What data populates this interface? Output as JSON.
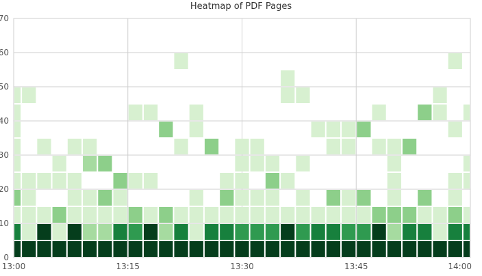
{
  "chart_data": {
    "type": "heatmap",
    "title": "Heatmap of PDF Pages",
    "xlabel": "",
    "ylabel": "",
    "x_start": "13:00",
    "x_end": "14:00",
    "x_ticks": [
      "13:00",
      "13:15",
      "13:30",
      "13:45",
      "14:00"
    ],
    "ylim": [
      0,
      70
    ],
    "y_ticks": [
      0,
      10,
      20,
      30,
      40,
      50,
      60,
      70
    ],
    "bin_minutes": 2,
    "bin_height": 5,
    "grid": true,
    "colors": [
      "#d7f0d0",
      "#a6dba0",
      "#8dcf8a",
      "#5ab867",
      "#2f9a50",
      "#17803d",
      "#0c5a2a",
      "#053d1c"
    ],
    "columns": [
      {
        "time": "13:00",
        "cells": [
          {
            "y": 0,
            "level": 7
          },
          {
            "y": 5,
            "level": 5
          },
          {
            "y": 10,
            "level": 0
          },
          {
            "y": 15,
            "level": 2
          },
          {
            "y": 20,
            "level": 0
          },
          {
            "y": 25,
            "level": 0
          },
          {
            "y": 30,
            "level": 0
          },
          {
            "y": 35,
            "level": 0
          },
          {
            "y": 40,
            "level": 0
          },
          {
            "y": 45,
            "level": 0
          }
        ]
      },
      {
        "time": "13:02",
        "cells": [
          {
            "y": 0,
            "level": 7
          },
          {
            "y": 5,
            "level": 0
          },
          {
            "y": 10,
            "level": 0
          },
          {
            "y": 15,
            "level": 0
          },
          {
            "y": 20,
            "level": 0
          },
          {
            "y": 45,
            "level": 0
          }
        ]
      },
      {
        "time": "13:04",
        "cells": [
          {
            "y": 0,
            "level": 7
          },
          {
            "y": 5,
            "level": 7
          },
          {
            "y": 10,
            "level": 0
          },
          {
            "y": 20,
            "level": 0
          },
          {
            "y": 30,
            "level": 0
          }
        ]
      },
      {
        "time": "13:06",
        "cells": [
          {
            "y": 0,
            "level": 7
          },
          {
            "y": 5,
            "level": 0
          },
          {
            "y": 10,
            "level": 2
          },
          {
            "y": 20,
            "level": 0
          },
          {
            "y": 25,
            "level": 0
          }
        ]
      },
      {
        "time": "13:08",
        "cells": [
          {
            "y": 0,
            "level": 7
          },
          {
            "y": 5,
            "level": 7
          },
          {
            "y": 10,
            "level": 0
          },
          {
            "y": 15,
            "level": 0
          },
          {
            "y": 20,
            "level": 0
          },
          {
            "y": 30,
            "level": 0
          }
        ]
      },
      {
        "time": "13:10",
        "cells": [
          {
            "y": 0,
            "level": 7
          },
          {
            "y": 5,
            "level": 1
          },
          {
            "y": 10,
            "level": 0
          },
          {
            "y": 15,
            "level": 0
          },
          {
            "y": 25,
            "level": 1
          },
          {
            "y": 30,
            "level": 0
          }
        ]
      },
      {
        "time": "13:12",
        "cells": [
          {
            "y": 0,
            "level": 7
          },
          {
            "y": 5,
            "level": 1
          },
          {
            "y": 10,
            "level": 0
          },
          {
            "y": 15,
            "level": 2
          },
          {
            "y": 25,
            "level": 2
          }
        ]
      },
      {
        "time": "13:14",
        "cells": [
          {
            "y": 0,
            "level": 7
          },
          {
            "y": 5,
            "level": 5
          },
          {
            "y": 10,
            "level": 0
          },
          {
            "y": 15,
            "level": 0
          },
          {
            "y": 20,
            "level": 2
          }
        ]
      },
      {
        "time": "13:16",
        "cells": [
          {
            "y": 0,
            "level": 7
          },
          {
            "y": 5,
            "level": 4
          },
          {
            "y": 10,
            "level": 2
          },
          {
            "y": 20,
            "level": 0
          },
          {
            "y": 40,
            "level": 0
          }
        ]
      },
      {
        "time": "13:18",
        "cells": [
          {
            "y": 0,
            "level": 7
          },
          {
            "y": 5,
            "level": 7
          },
          {
            "y": 10,
            "level": 0
          },
          {
            "y": 20,
            "level": 0
          },
          {
            "y": 40,
            "level": 0
          }
        ]
      },
      {
        "time": "13:20",
        "cells": [
          {
            "y": 0,
            "level": 7
          },
          {
            "y": 5,
            "level": 1
          },
          {
            "y": 10,
            "level": 2
          },
          {
            "y": 35,
            "level": 2
          }
        ]
      },
      {
        "time": "13:22",
        "cells": [
          {
            "y": 0,
            "level": 7
          },
          {
            "y": 5,
            "level": 5
          },
          {
            "y": 10,
            "level": 0
          },
          {
            "y": 30,
            "level": 0
          },
          {
            "y": 55,
            "level": 0
          }
        ]
      },
      {
        "time": "13:24",
        "cells": [
          {
            "y": 0,
            "level": 7
          },
          {
            "y": 5,
            "level": 0
          },
          {
            "y": 10,
            "level": 0
          },
          {
            "y": 15,
            "level": 0
          },
          {
            "y": 35,
            "level": 0
          },
          {
            "y": 40,
            "level": 0
          }
        ]
      },
      {
        "time": "13:26",
        "cells": [
          {
            "y": 0,
            "level": 7
          },
          {
            "y": 5,
            "level": 5
          },
          {
            "y": 10,
            "level": 0
          },
          {
            "y": 30,
            "level": 2
          }
        ]
      },
      {
        "time": "13:28",
        "cells": [
          {
            "y": 0,
            "level": 7
          },
          {
            "y": 5,
            "level": 5
          },
          {
            "y": 10,
            "level": 0
          },
          {
            "y": 15,
            "level": 2
          },
          {
            "y": 20,
            "level": 0
          }
        ]
      },
      {
        "time": "13:30",
        "cells": [
          {
            "y": 0,
            "level": 7
          },
          {
            "y": 5,
            "level": 4
          },
          {
            "y": 10,
            "level": 0
          },
          {
            "y": 15,
            "level": 0
          },
          {
            "y": 20,
            "level": 0
          },
          {
            "y": 25,
            "level": 0
          },
          {
            "y": 30,
            "level": 0
          }
        ]
      },
      {
        "time": "13:32",
        "cells": [
          {
            "y": 0,
            "level": 7
          },
          {
            "y": 5,
            "level": 4
          },
          {
            "y": 10,
            "level": 0
          },
          {
            "y": 15,
            "level": 0
          },
          {
            "y": 25,
            "level": 0
          },
          {
            "y": 30,
            "level": 0
          }
        ]
      },
      {
        "time": "13:34",
        "cells": [
          {
            "y": 0,
            "level": 7
          },
          {
            "y": 5,
            "level": 4
          },
          {
            "y": 10,
            "level": 0
          },
          {
            "y": 15,
            "level": 0
          },
          {
            "y": 20,
            "level": 2
          },
          {
            "y": 25,
            "level": 0
          }
        ]
      },
      {
        "time": "13:36",
        "cells": [
          {
            "y": 0,
            "level": 7
          },
          {
            "y": 5,
            "level": 7
          },
          {
            "y": 10,
            "level": 0
          },
          {
            "y": 20,
            "level": 0
          },
          {
            "y": 45,
            "level": 0
          },
          {
            "y": 50,
            "level": 0
          }
        ]
      },
      {
        "time": "13:38",
        "cells": [
          {
            "y": 0,
            "level": 7
          },
          {
            "y": 5,
            "level": 4
          },
          {
            "y": 10,
            "level": 0
          },
          {
            "y": 15,
            "level": 0
          },
          {
            "y": 25,
            "level": 0
          },
          {
            "y": 45,
            "level": 0
          }
        ]
      },
      {
        "time": "13:40",
        "cells": [
          {
            "y": 0,
            "level": 7
          },
          {
            "y": 5,
            "level": 5
          },
          {
            "y": 10,
            "level": 0
          },
          {
            "y": 35,
            "level": 0
          }
        ]
      },
      {
        "time": "13:42",
        "cells": [
          {
            "y": 0,
            "level": 7
          },
          {
            "y": 5,
            "level": 5
          },
          {
            "y": 10,
            "level": 0
          },
          {
            "y": 15,
            "level": 2
          },
          {
            "y": 30,
            "level": 0
          },
          {
            "y": 35,
            "level": 0
          }
        ]
      },
      {
        "time": "13:44",
        "cells": [
          {
            "y": 0,
            "level": 7
          },
          {
            "y": 5,
            "level": 4
          },
          {
            "y": 10,
            "level": 0
          },
          {
            "y": 15,
            "level": 0
          },
          {
            "y": 30,
            "level": 0
          },
          {
            "y": 35,
            "level": 0
          }
        ]
      },
      {
        "time": "13:46",
        "cells": [
          {
            "y": 0,
            "level": 7
          },
          {
            "y": 5,
            "level": 4
          },
          {
            "y": 10,
            "level": 0
          },
          {
            "y": 15,
            "level": 2
          },
          {
            "y": 35,
            "level": 2
          }
        ]
      },
      {
        "time": "13:48",
        "cells": [
          {
            "y": 0,
            "level": 7
          },
          {
            "y": 5,
            "level": 7
          },
          {
            "y": 10,
            "level": 2
          },
          {
            "y": 30,
            "level": 0
          },
          {
            "y": 40,
            "level": 0
          }
        ]
      },
      {
        "time": "13:50",
        "cells": [
          {
            "y": 0,
            "level": 7
          },
          {
            "y": 5,
            "level": 1
          },
          {
            "y": 10,
            "level": 2
          },
          {
            "y": 15,
            "level": 0
          },
          {
            "y": 20,
            "level": 0
          },
          {
            "y": 25,
            "level": 0
          },
          {
            "y": 30,
            "level": 0
          }
        ]
      },
      {
        "time": "13:52",
        "cells": [
          {
            "y": 0,
            "level": 7
          },
          {
            "y": 5,
            "level": 5
          },
          {
            "y": 10,
            "level": 2
          },
          {
            "y": 30,
            "level": 2
          }
        ]
      },
      {
        "time": "13:54",
        "cells": [
          {
            "y": 0,
            "level": 7
          },
          {
            "y": 5,
            "level": 5
          },
          {
            "y": 10,
            "level": 0
          },
          {
            "y": 15,
            "level": 2
          },
          {
            "y": 40,
            "level": 2
          }
        ]
      },
      {
        "time": "13:56",
        "cells": [
          {
            "y": 0,
            "level": 7
          },
          {
            "y": 5,
            "level": 0
          },
          {
            "y": 10,
            "level": 0
          },
          {
            "y": 40,
            "level": 0
          },
          {
            "y": 45,
            "level": 0
          }
        ]
      },
      {
        "time": "13:58",
        "cells": [
          {
            "y": 0,
            "level": 7
          },
          {
            "y": 5,
            "level": 5
          },
          {
            "y": 10,
            "level": 2
          },
          {
            "y": 15,
            "level": 0
          },
          {
            "y": 20,
            "level": 0
          },
          {
            "y": 35,
            "level": 0
          },
          {
            "y": 55,
            "level": 0
          }
        ]
      },
      {
        "time": "14:00",
        "cells": [
          {
            "y": 0,
            "level": 7
          },
          {
            "y": 5,
            "level": 5
          },
          {
            "y": 10,
            "level": 0
          },
          {
            "y": 20,
            "level": 0
          },
          {
            "y": 25,
            "level": 0
          },
          {
            "y": 40,
            "level": 0
          }
        ]
      },
      {
        "time": "14:02",
        "cells": [
          {
            "y": 0,
            "level": 7
          },
          {
            "y": 5,
            "level": 5
          },
          {
            "y": 10,
            "level": 2
          },
          {
            "y": 25,
            "level": 0
          },
          {
            "y": 30,
            "level": 0
          },
          {
            "y": 35,
            "level": 0
          }
        ]
      }
    ]
  }
}
